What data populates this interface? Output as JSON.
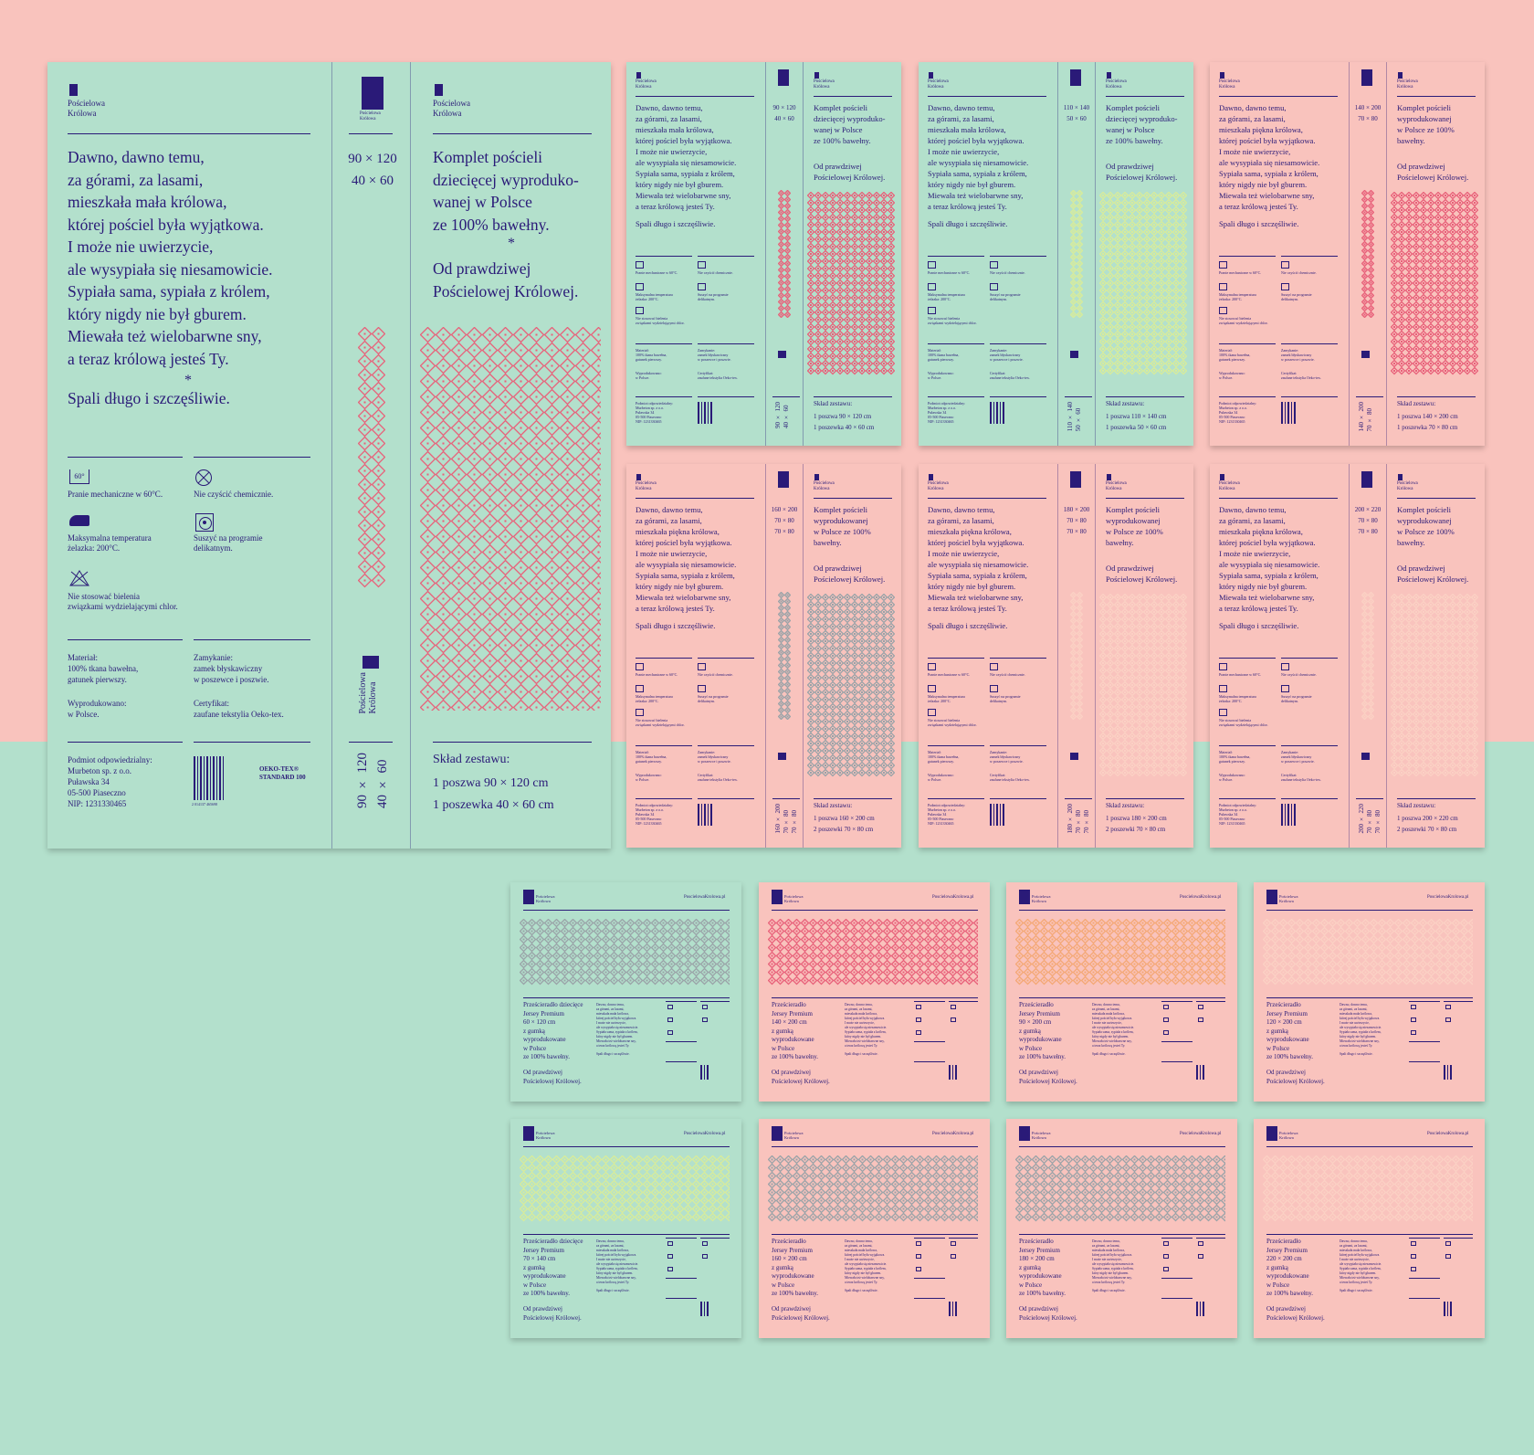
{
  "colors": {
    "mint": "#b3e0cc",
    "pink": "#f9c3bd",
    "ink": "#2a1a78",
    "accent_pink": "#e8617a",
    "accent_grey": "#9aa3a8",
    "accent_lime": "#d8ec9a",
    "accent_orange": "#f4a875",
    "accent_peach": "#fbd1c4"
  },
  "brand": {
    "line1": "Pościelowa",
    "line2": "Królowa",
    "website": "PoscielowaKrolowa.pl"
  },
  "big": {
    "story": "Dawno, dawno temu,\nza górami, za lasami,\nmieszkała mała królowa,\nktórej pościel była wyjątkowa.\nI może nie uwierzycie,\nale wysypiała się niesamowicie.\nSypiała sama, sypiała z królem,\nktóry nigdy nie był gburem.\nMiewała też wielobarwne sny,\na teraz królową jesteś Ty.",
    "star": "*",
    "sleep": "Spali długo i szczęśliwie.",
    "sizes": "90 × 120\n40 × 60",
    "sizes_vertical": "90 × 120\n40 × 60",
    "headline": "Komplet pościeli\ndziecięcej wyproduko-\nwanej w Polsce\nze 100% bawełny.",
    "headline2": "Od prawdziwej\nPościelowej Królowej.",
    "care": [
      {
        "icon": "wash-60-icon",
        "text": "Pranie mechaniczne w 60°C."
      },
      {
        "icon": "no-dry-clean-icon",
        "text": "Nie czyścić chemicznie."
      },
      {
        "icon": "iron-200-icon",
        "text": "Maksymalna temperatura\nżelazka: 200°C."
      },
      {
        "icon": "tumble-dry-icon",
        "text": "Suszyć na programie\ndelikatnym."
      },
      {
        "icon": "no-bleach-icon",
        "text": "Nie stosować bielenia\nzwiązkami wydzielającymi chlor."
      }
    ],
    "wash_label": "60°",
    "material": "Materiał:\n100% tkana bawełna,\ngatunek pierwszy.",
    "closure": "Zamykanie:\nzamek błyskawiczny\nw poszewce i poszwie.",
    "made": "Wyprodukowano:\nw Polsce.",
    "cert": "Certyfikat:\nzaufane tekstylia Oeko-tex.",
    "company": "Podmiot odpowiedzialny:\nMurbeton sp. z o.o.\nPuławska 34\n05-500 Piaseczno\nNIP: 1231330465",
    "barcode_num": "2 014137 465698",
    "oeko": "OEKO-TEX®",
    "oeko2": "STANDARD 100",
    "set_title": "Skład zestawu:",
    "set_items": "1 poszwa 90 × 120 cm\n1 poszewka 40 × 60 cm"
  },
  "small_boxes": [
    {
      "bg": "mint",
      "pattern": "accent_pink",
      "sizes": "90 × 120\n40 × 60",
      "vsizes": "90 × 120\n40 × 60",
      "headline": "Komplet pościeli\ndziecięcej wyproduko-\nwanej w Polsce\nze 100% bawełny.",
      "mala": "mała",
      "set": "1 poszwa 90 × 120 cm\n1 poszewka 40 × 60 cm"
    },
    {
      "bg": "mint",
      "pattern": "accent_lime",
      "sizes": "110 × 140\n50 × 60",
      "vsizes": "110 × 140\n50 × 60",
      "headline": "Komplet pościeli\ndziecięcej wyproduko-\nwanej w Polsce\nze 100% bawełny.",
      "mala": "mała",
      "set": "1 poszwa 110 × 140 cm\n1 poszewka 50 × 60 cm"
    },
    {
      "bg": "pink",
      "pattern": "accent_pink",
      "sizes": "140 × 200\n70 × 80",
      "vsizes": "140 × 200\n70 × 80",
      "headline": "Komplet pościeli\nwyprodukowanej\nw Polsce ze 100%\nbawełny.",
      "mala": "piękna",
      "set": "1 poszwa 140 × 200 cm\n1 poszewka 70 × 80 cm"
    },
    {
      "bg": "pink",
      "pattern": "accent_grey",
      "sizes": "160 × 200\n70 × 80\n70 × 80",
      "vsizes": "160 × 200\n70 × 80\n70 × 80",
      "headline": "Komplet pościeli\nwyprodukowanej\nw Polsce ze 100%\nbawełny.",
      "mala": "piękna",
      "set": "1 poszwa 160 × 200 cm\n2 poszewki 70 × 80 cm"
    },
    {
      "bg": "pink",
      "pattern": "accent_peach",
      "sizes": "180 × 200\n70 × 80\n70 × 80",
      "vsizes": "180 × 200\n70 × 80\n70 × 80",
      "headline": "Komplet pościeli\nwyprodukowanej\nw Polsce ze 100%\nbawełny.",
      "mala": "piękna",
      "set": "1 poszwa 180 × 200 cm\n2 poszewki 70 × 80 cm"
    },
    {
      "bg": "pink",
      "pattern": "accent_peach",
      "sizes": "200 × 220\n70 × 80\n70 × 80",
      "vsizes": "200 × 220\n70 × 80\n70 × 80",
      "headline": "Komplet pościeli\nwyprodukowanej\nw Polsce ze 100%\nbawełny.",
      "mala": "piękna",
      "set": "1 poszwa 200 × 220 cm\n2 poszewki 70 × 80 cm"
    }
  ],
  "small_story": "Dawno, dawno temu,\nza górami, za lasami,\nmieszkała mała królowa,\nktórej pościel była wyjątkowa.\nI może nie uwierzycie,\nale wysypiała się niesamowicie.\nSypiała sama, sypiała z królem,\nktóry nigdy nie był gburem.\nMiewała też wielobarwne sny,\na teraz królową jesteś Ty.",
  "small_story_piekna": "Dawno, dawno temu,\nza górami, za lasami,\nmieszkała piękna królowa,\nktórej pościel była wyjątkowa.\nI może nie uwierzycie,\nale wysypiała się niesamowicie.\nSypiała sama, sypiała z królem,\nktóry nigdy nie był gburem.\nMiewała też wielobarwne sny,\na teraz królową jesteś Ty.",
  "small_sleep": "Spali długo i szczęśliwie.",
  "small_origin": "Od prawdziwej\nPościelowej Królowej.",
  "small_set_title": "Skład zestawu:",
  "small_care": [
    "Pranie mechaniczne w 60°C.",
    "Nie czyścić chemicznie.",
    "Maksymalna temperatura\nżelazka: 200°C.",
    "Suszyć na programie\ndelikatnym.",
    "Nie stosować bielenia\nzwiązkami wydzielającymi chlor."
  ],
  "small_material": "Materiał:\n100% tkana bawełna,\ngatunek pierwszy.",
  "small_closure": "Zamykanie:\nzamek błyskawiczny\nw poszewce i poszwie.",
  "small_made": "Wyprodukowano:\nw Polsce.",
  "small_cert": "Certyfikat:\nzaufane tekstylia Oeko-tex.",
  "small_company": "Podmiot odpowiedzialny:\nMurbeton sp. z o.o.\nPuławska 34\n05-500 Piaseczno\nNIP: 1231330465",
  "sheets": [
    {
      "bg": "mint",
      "pattern": "accent_grey",
      "text": "Prześcieradło dziecięce\nJersey Premium\n60 × 120 cm\nz gumką\nwyprodukowane\nw Polsce\nze 100% bawełny."
    },
    {
      "bg": "pink",
      "pattern": "accent_pink",
      "text": "Prześcieradło\nJersey Premium\n140 × 200 cm\nz gumką\nwyprodukowane\nw Polsce\nze 100% bawełny."
    },
    {
      "bg": "pink",
      "pattern": "accent_orange",
      "text": "Prześcieradło\nJersey Premium\n90 × 200 cm\nz gumką\nwyprodukowane\nw Polsce\nze 100% bawełny."
    },
    {
      "bg": "pink",
      "pattern": "accent_peach",
      "text": "Prześcieradło\nJersey Premium\n120 × 200 cm\nz gumką\nwyprodukowane\nw Polsce\nze 100% bawełny."
    },
    {
      "bg": "mint",
      "pattern": "accent_lime",
      "text": "Prześcieradło dziecięce\nJersey Premium\n70 × 140 cm\nz gumką\nwyprodukowane\nw Polsce\nze 100% bawełny."
    },
    {
      "bg": "pink",
      "pattern": "accent_grey",
      "text": "Prześcieradło\nJersey Premium\n160 × 200 cm\nz gumką\nwyprodukowane\nw Polsce\nze 100% bawełny."
    },
    {
      "bg": "pink",
      "pattern": "accent_grey",
      "text": "Prześcieradło\nJersey Premium\n180 × 200 cm\nz gumką\nwyprodukowane\nw Polsce\nze 100% bawełny."
    },
    {
      "bg": "pink",
      "pattern": "accent_peach",
      "text": "Prześcieradło\nJersey Premium\n220 × 200 cm\nz gumką\nwyprodukowane\nw Polsce\nze 100% bawełny."
    }
  ],
  "sheet_story": "Dawno, dawno temu,\nza górami, za lasami,\nmieszkała mała królowa,\nktórej pościel była wyjątkowa.\nI może nie uwierzycie,\nale wysypiała się niesamowicie.\nSypiała sama, sypiała z królem,\nktóry nigdy nie był gburem.\nMiewała też wielobarwne sny,\na teraz królową jesteś Ty.",
  "sheet_sleep": "Spali długo i szczęśliwie."
}
